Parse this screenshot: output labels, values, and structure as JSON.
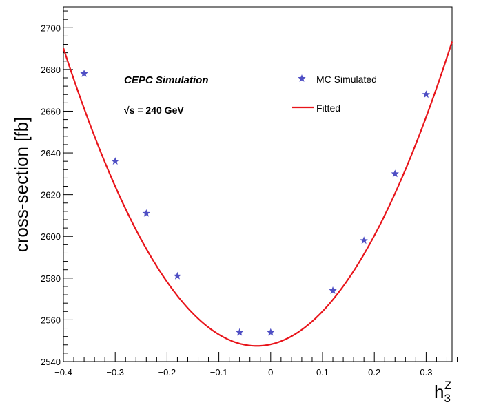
{
  "chart_data": {
    "type": "scatter",
    "title": "",
    "xlabel": "h",
    "xlabel_sub": "3",
    "xlabel_sup": "Z",
    "ylabel": "cross-section [fb]",
    "xlim": [
      -0.4,
      0.35
    ],
    "ylim": [
      2540,
      2710
    ],
    "xticks": [
      -0.4,
      -0.3,
      -0.2,
      -0.1,
      0,
      0.1,
      0.2,
      0.3
    ],
    "xtick_labels": [
      "−0.4",
      "−0.3",
      "−0.2",
      "−0.1",
      "0",
      "0.1",
      "0.2",
      "0.3"
    ],
    "yticks": [
      2540,
      2560,
      2580,
      2600,
      2620,
      2640,
      2660,
      2680,
      2700
    ],
    "ytick_labels": [
      "2540",
      "2560",
      "2580",
      "2600",
      "2620",
      "2640",
      "2660",
      "2680",
      "2700"
    ],
    "annotations": {
      "experiment": "CEPC Simulation",
      "sqrt_symbol": "√",
      "energy": "s = 240 GeV"
    },
    "series": [
      {
        "name": "MC Simulated",
        "kind": "points",
        "marker": "star",
        "color": "#4f4fc4",
        "x": [
          -0.36,
          -0.3,
          -0.24,
          -0.18,
          -0.06,
          0,
          0.12,
          0.18,
          0.24,
          0.3
        ],
        "y": [
          2678,
          2636,
          2611,
          2581,
          2554,
          2554,
          2574,
          2598,
          2630,
          2668
        ]
      },
      {
        "name": "Fitted",
        "kind": "curve",
        "color": "#e8141a",
        "model": "quadratic",
        "vertex_x": -0.027,
        "vertex_y": 2547.5,
        "curvature": 1026
      }
    ],
    "legend": {
      "position": "top-right",
      "entries": [
        "MC Simulated",
        "Fitted"
      ]
    }
  }
}
